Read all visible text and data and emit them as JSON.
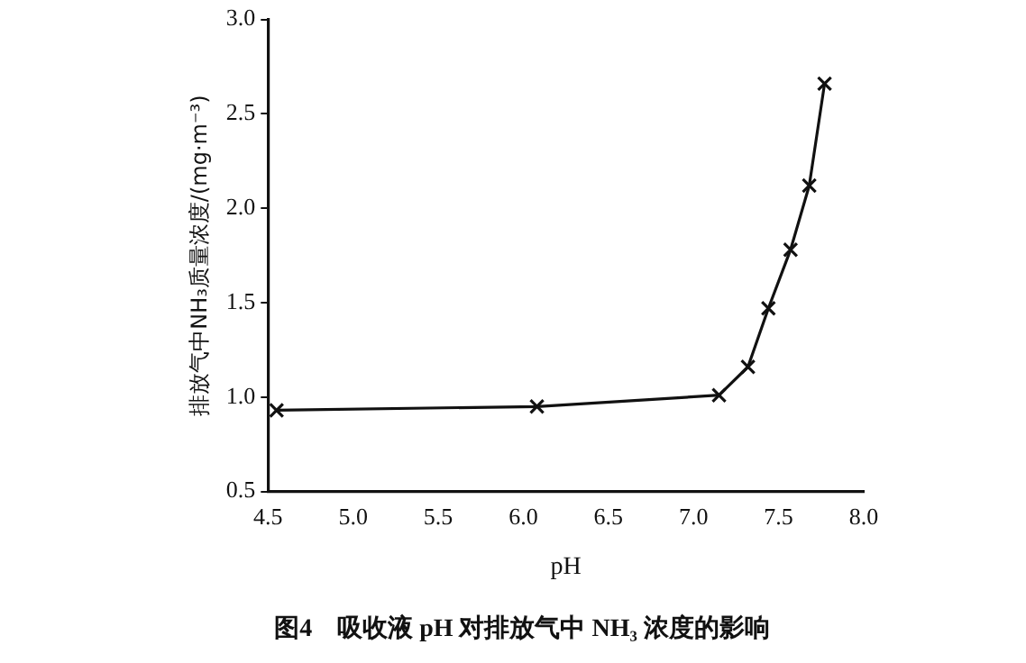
{
  "chart_data": {
    "type": "line",
    "title": "图4　吸收液 pH 对排放气中 NH₃ 浓度的影响",
    "xlabel": "pH",
    "ylabel": "排放气中NH₃质量浓度/(mg·m⁻³)",
    "x": [
      4.55,
      6.08,
      7.15,
      7.32,
      7.44,
      7.57,
      7.68,
      7.77
    ],
    "series": [
      {
        "color": "#111111",
        "values": [
          0.93,
          0.95,
          1.01,
          1.16,
          1.47,
          1.78,
          2.12,
          2.66
        ]
      }
    ],
    "xlim": [
      4.5,
      8.0
    ],
    "xticks": [
      4.5,
      {
        "value": 5,
        "label": "5.0"
      },
      5.5,
      {
        "value": 6,
        "label": "6.0"
      },
      6.5,
      {
        "value": 7,
        "label": "7.0"
      },
      7.5,
      {
        "value": 8,
        "label": "8.0"
      }
    ],
    "ylim": [
      0.5,
      3.0
    ],
    "yticks": [
      0.5,
      {
        "value": 1,
        "label": "1.0"
      },
      1.5,
      {
        "value": 2,
        "label": "2.0"
      },
      2.5,
      {
        "value": 3,
        "label": "3.0"
      }
    ],
    "grid": false,
    "legend": false,
    "marker": "cross",
    "line_style": "solid"
  }
}
